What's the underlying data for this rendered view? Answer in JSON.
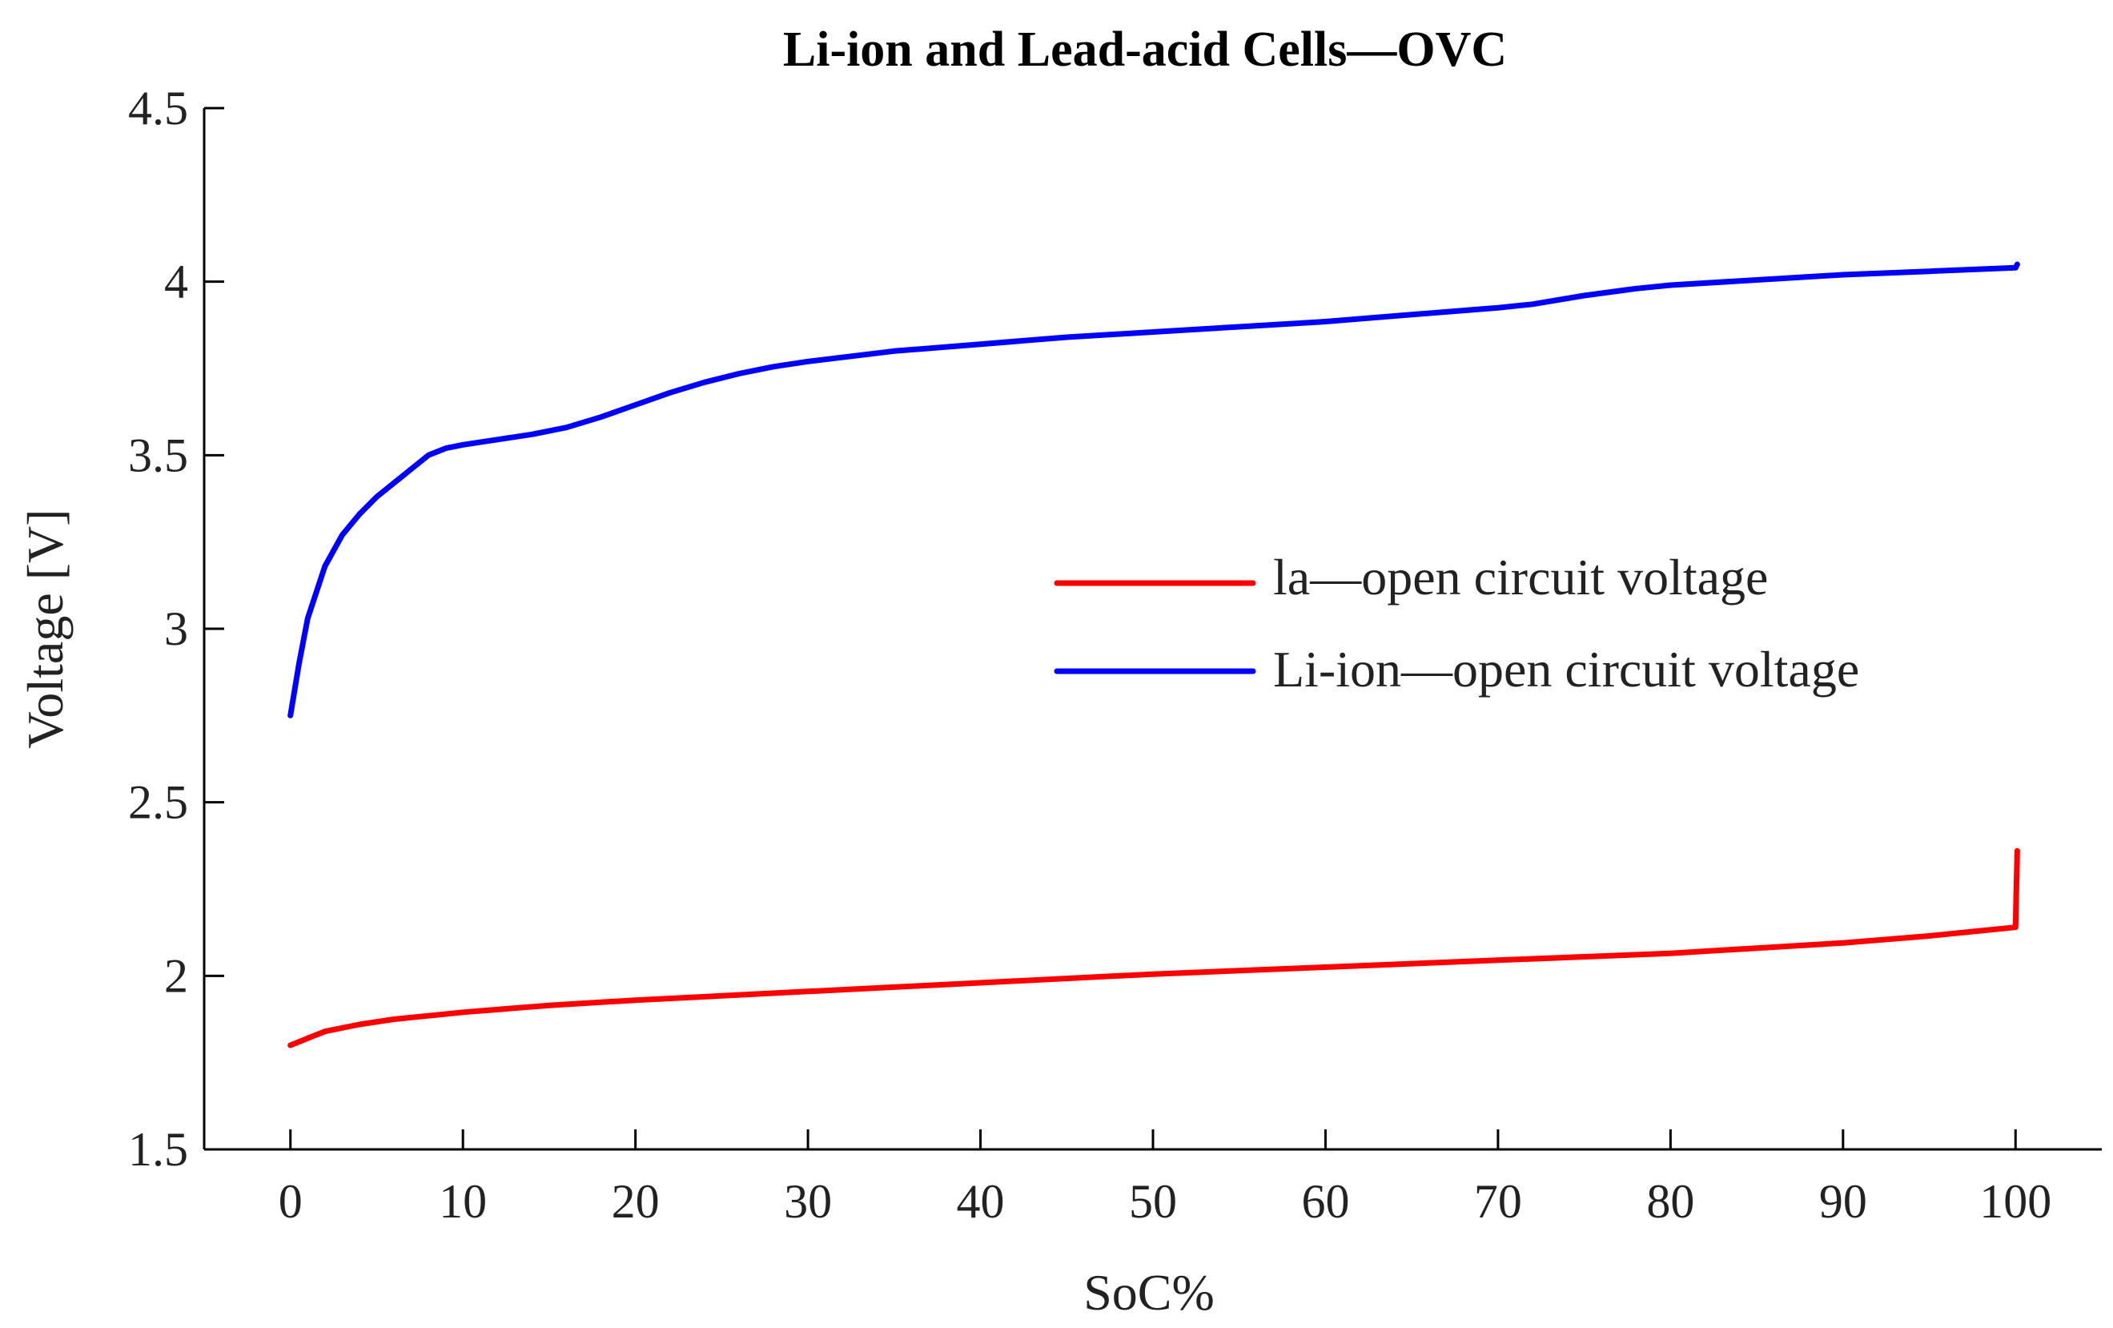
{
  "chart_data": {
    "type": "line",
    "title": "Li-ion and Lead-acid Cells—OVC",
    "xlabel": "SoC%",
    "ylabel": "Voltage [V]",
    "xlim": [
      -5,
      105
    ],
    "ylim": [
      1.5,
      4.5
    ],
    "xticks": [
      0,
      10,
      20,
      30,
      40,
      50,
      60,
      70,
      80,
      90,
      100
    ],
    "yticks": [
      1.5,
      2,
      2.5,
      3,
      3.5,
      4,
      4.5
    ],
    "ytick_labels": [
      "1.5",
      "2",
      "2.5",
      "3",
      "3.5",
      "4",
      "4.5"
    ],
    "grid": false,
    "legend_position": "right",
    "series": [
      {
        "name": "la—open circuit voltage",
        "color": "#ff0000",
        "x": [
          0,
          1,
          2,
          4,
          6,
          8,
          10,
          15,
          20,
          30,
          40,
          50,
          60,
          70,
          80,
          85,
          90,
          95,
          98,
          100,
          100.05,
          100.1
        ],
        "y": [
          1.8,
          1.82,
          1.84,
          1.86,
          1.875,
          1.885,
          1.895,
          1.915,
          1.93,
          1.955,
          1.98,
          2.005,
          2.025,
          2.045,
          2.065,
          2.08,
          2.095,
          2.115,
          2.13,
          2.14,
          2.25,
          2.36
        ]
      },
      {
        "name": "Li-ion—open circuit voltage",
        "color": "#0000ff",
        "x": [
          0,
          0.5,
          1,
          2,
          3,
          4,
          5,
          6,
          7,
          8,
          9,
          10,
          12,
          14,
          16,
          18,
          20,
          22,
          24,
          26,
          28,
          30,
          35,
          40,
          45,
          50,
          55,
          60,
          65,
          70,
          72,
          75,
          78,
          80,
          85,
          90,
          95,
          100,
          100.1
        ],
        "y": [
          2.75,
          2.9,
          3.03,
          3.18,
          3.27,
          3.33,
          3.38,
          3.42,
          3.46,
          3.5,
          3.52,
          3.53,
          3.545,
          3.56,
          3.58,
          3.61,
          3.645,
          3.68,
          3.71,
          3.735,
          3.755,
          3.77,
          3.8,
          3.82,
          3.84,
          3.855,
          3.87,
          3.885,
          3.905,
          3.925,
          3.935,
          3.96,
          3.98,
          3.99,
          4.005,
          4.02,
          4.03,
          4.04,
          4.05
        ]
      }
    ]
  }
}
